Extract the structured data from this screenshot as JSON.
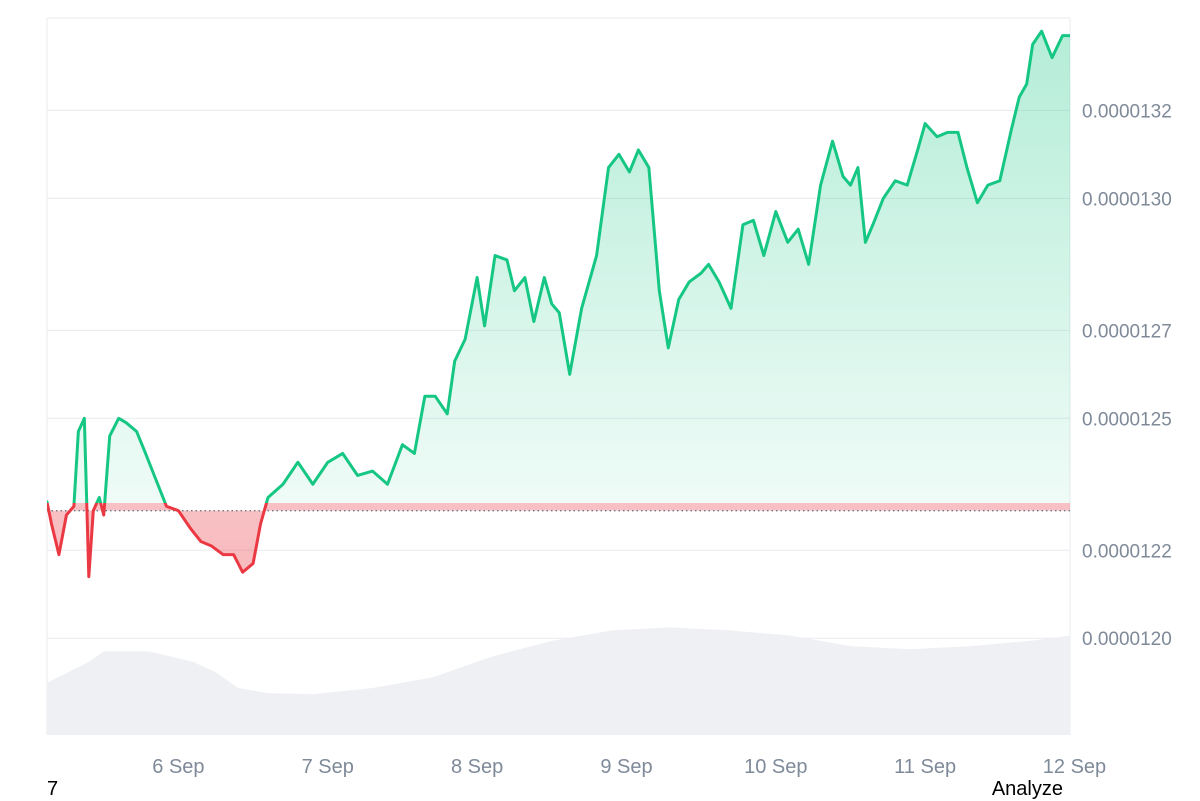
{
  "chart_data": {
    "type": "area",
    "x_type": "date",
    "x_ticks": [
      "6 Sep",
      "7 Sep",
      "8 Sep",
      "9 Sep",
      "10 Sep",
      "11 Sep",
      "12 Sep"
    ],
    "y_ticks": [
      "0.0000132",
      "0.0000130",
      "0.0000127",
      "0.0000125",
      "0.0000122",
      "0.0000120"
    ],
    "ylim": [
      1.178e-05,
      1.341e-05
    ],
    "baseline": 1.229e-05,
    "grid": true,
    "colors": {
      "up_line": "#16c784",
      "down_line": "#ea3943",
      "up_fill": "#16c784",
      "down_fill": "#ea3943",
      "volume": "#eef0f3",
      "grid": "#e8ebef",
      "tick_text": "#7f8a99"
    },
    "series": [
      {
        "values": [
          [
            5.62,
            1.231e-05
          ],
          [
            5.65,
            1.226e-05
          ],
          [
            5.7,
            1.219e-05
          ],
          [
            5.75,
            1.228e-05
          ],
          [
            5.8,
            1.23e-05
          ],
          [
            5.83,
            1.247e-05
          ],
          [
            5.87,
            1.25e-05
          ],
          [
            5.9,
            1.214e-05
          ],
          [
            5.93,
            1.229e-05
          ],
          [
            5.97,
            1.232e-05
          ],
          [
            6.0,
            1.228e-05
          ],
          [
            6.04,
            1.246e-05
          ],
          [
            6.1,
            1.25e-05
          ],
          [
            6.15,
            1.249e-05
          ],
          [
            6.22,
            1.247e-05
          ],
          [
            6.28,
            1.242e-05
          ],
          [
            6.35,
            1.236e-05
          ],
          [
            6.42,
            1.23e-05
          ],
          [
            6.5,
            1.229e-05
          ],
          [
            6.58,
            1.225e-05
          ],
          [
            6.65,
            1.222e-05
          ],
          [
            6.72,
            1.221e-05
          ],
          [
            6.8,
            1.219e-05
          ],
          [
            6.87,
            1.219e-05
          ],
          [
            6.93,
            1.215e-05
          ],
          [
            7.0,
            1.217e-05
          ],
          [
            7.05,
            1.226e-05
          ],
          [
            7.1,
            1.232e-05
          ],
          [
            7.2,
            1.235e-05
          ],
          [
            7.3,
            1.24e-05
          ],
          [
            7.4,
            1.235e-05
          ],
          [
            7.5,
            1.24e-05
          ],
          [
            7.6,
            1.242e-05
          ],
          [
            7.7,
            1.237e-05
          ],
          [
            7.8,
            1.238e-05
          ],
          [
            7.9,
            1.235e-05
          ],
          [
            8.0,
            1.244e-05
          ],
          [
            8.08,
            1.242e-05
          ],
          [
            8.15,
            1.255e-05
          ],
          [
            8.22,
            1.255e-05
          ],
          [
            8.3,
            1.251e-05
          ],
          [
            8.35,
            1.263e-05
          ],
          [
            8.42,
            1.268e-05
          ],
          [
            8.5,
            1.282e-05
          ],
          [
            8.55,
            1.271e-05
          ],
          [
            8.62,
            1.287e-05
          ],
          [
            8.7,
            1.286e-05
          ],
          [
            8.75,
            1.279e-05
          ],
          [
            8.82,
            1.282e-05
          ],
          [
            8.88,
            1.272e-05
          ],
          [
            8.95,
            1.282e-05
          ],
          [
            9.0,
            1.276e-05
          ],
          [
            9.05,
            1.274e-05
          ],
          [
            9.12,
            1.26e-05
          ],
          [
            9.2,
            1.275e-05
          ],
          [
            9.3,
            1.287e-05
          ],
          [
            9.38,
            1.307e-05
          ],
          [
            9.45,
            1.31e-05
          ],
          [
            9.52,
            1.306e-05
          ],
          [
            9.58,
            1.311e-05
          ],
          [
            9.65,
            1.307e-05
          ],
          [
            9.72,
            1.279e-05
          ],
          [
            9.78,
            1.266e-05
          ],
          [
            9.85,
            1.277e-05
          ],
          [
            9.92,
            1.281e-05
          ],
          [
            10.0,
            1.283e-05
          ],
          [
            10.05,
            1.285e-05
          ],
          [
            10.12,
            1.281e-05
          ],
          [
            10.2,
            1.275e-05
          ],
          [
            10.28,
            1.294e-05
          ],
          [
            10.35,
            1.295e-05
          ],
          [
            10.42,
            1.287e-05
          ],
          [
            10.5,
            1.297e-05
          ],
          [
            10.58,
            1.29e-05
          ],
          [
            10.65,
            1.293e-05
          ],
          [
            10.72,
            1.285e-05
          ],
          [
            10.8,
            1.303e-05
          ],
          [
            10.88,
            1.313e-05
          ],
          [
            10.95,
            1.305e-05
          ],
          [
            11.0,
            1.303e-05
          ],
          [
            11.05,
            1.307e-05
          ],
          [
            11.1,
            1.29e-05
          ],
          [
            11.15,
            1.294e-05
          ],
          [
            11.22,
            1.3e-05
          ],
          [
            11.3,
            1.304e-05
          ],
          [
            11.38,
            1.303e-05
          ],
          [
            11.45,
            1.311e-05
          ],
          [
            11.5,
            1.317e-05
          ],
          [
            11.58,
            1.314e-05
          ],
          [
            11.65,
            1.315e-05
          ],
          [
            11.72,
            1.315e-05
          ],
          [
            11.78,
            1.307e-05
          ],
          [
            11.85,
            1.299e-05
          ],
          [
            11.92,
            1.303e-05
          ],
          [
            12.0,
            1.304e-05
          ],
          [
            12.08,
            1.316e-05
          ],
          [
            12.13,
            1.323e-05
          ],
          [
            12.18,
            1.326e-05
          ],
          [
            12.22,
            1.335e-05
          ],
          [
            12.28,
            1.338e-05
          ],
          [
            12.35,
            1.332e-05
          ],
          [
            12.42,
            1.337e-05
          ],
          [
            12.47,
            1.337e-05
          ]
        ]
      }
    ],
    "volume": [
      [
        5.62,
        0.05
      ],
      [
        5.9,
        0.07
      ],
      [
        6.0,
        0.08
      ],
      [
        6.3,
        0.08
      ],
      [
        6.6,
        0.07
      ],
      [
        6.75,
        0.06
      ],
      [
        6.9,
        0.045
      ],
      [
        7.1,
        0.04
      ],
      [
        7.4,
        0.039
      ],
      [
        7.8,
        0.045
      ],
      [
        8.2,
        0.055
      ],
      [
        8.6,
        0.075
      ],
      [
        9.0,
        0.09
      ],
      [
        9.4,
        0.1
      ],
      [
        9.8,
        0.103
      ],
      [
        10.2,
        0.1
      ],
      [
        10.6,
        0.095
      ],
      [
        11.0,
        0.085
      ],
      [
        11.4,
        0.082
      ],
      [
        11.8,
        0.085
      ],
      [
        12.2,
        0.09
      ],
      [
        12.47,
        0.095
      ]
    ],
    "footer": {
      "left": "7",
      "right": "Analyze"
    }
  }
}
